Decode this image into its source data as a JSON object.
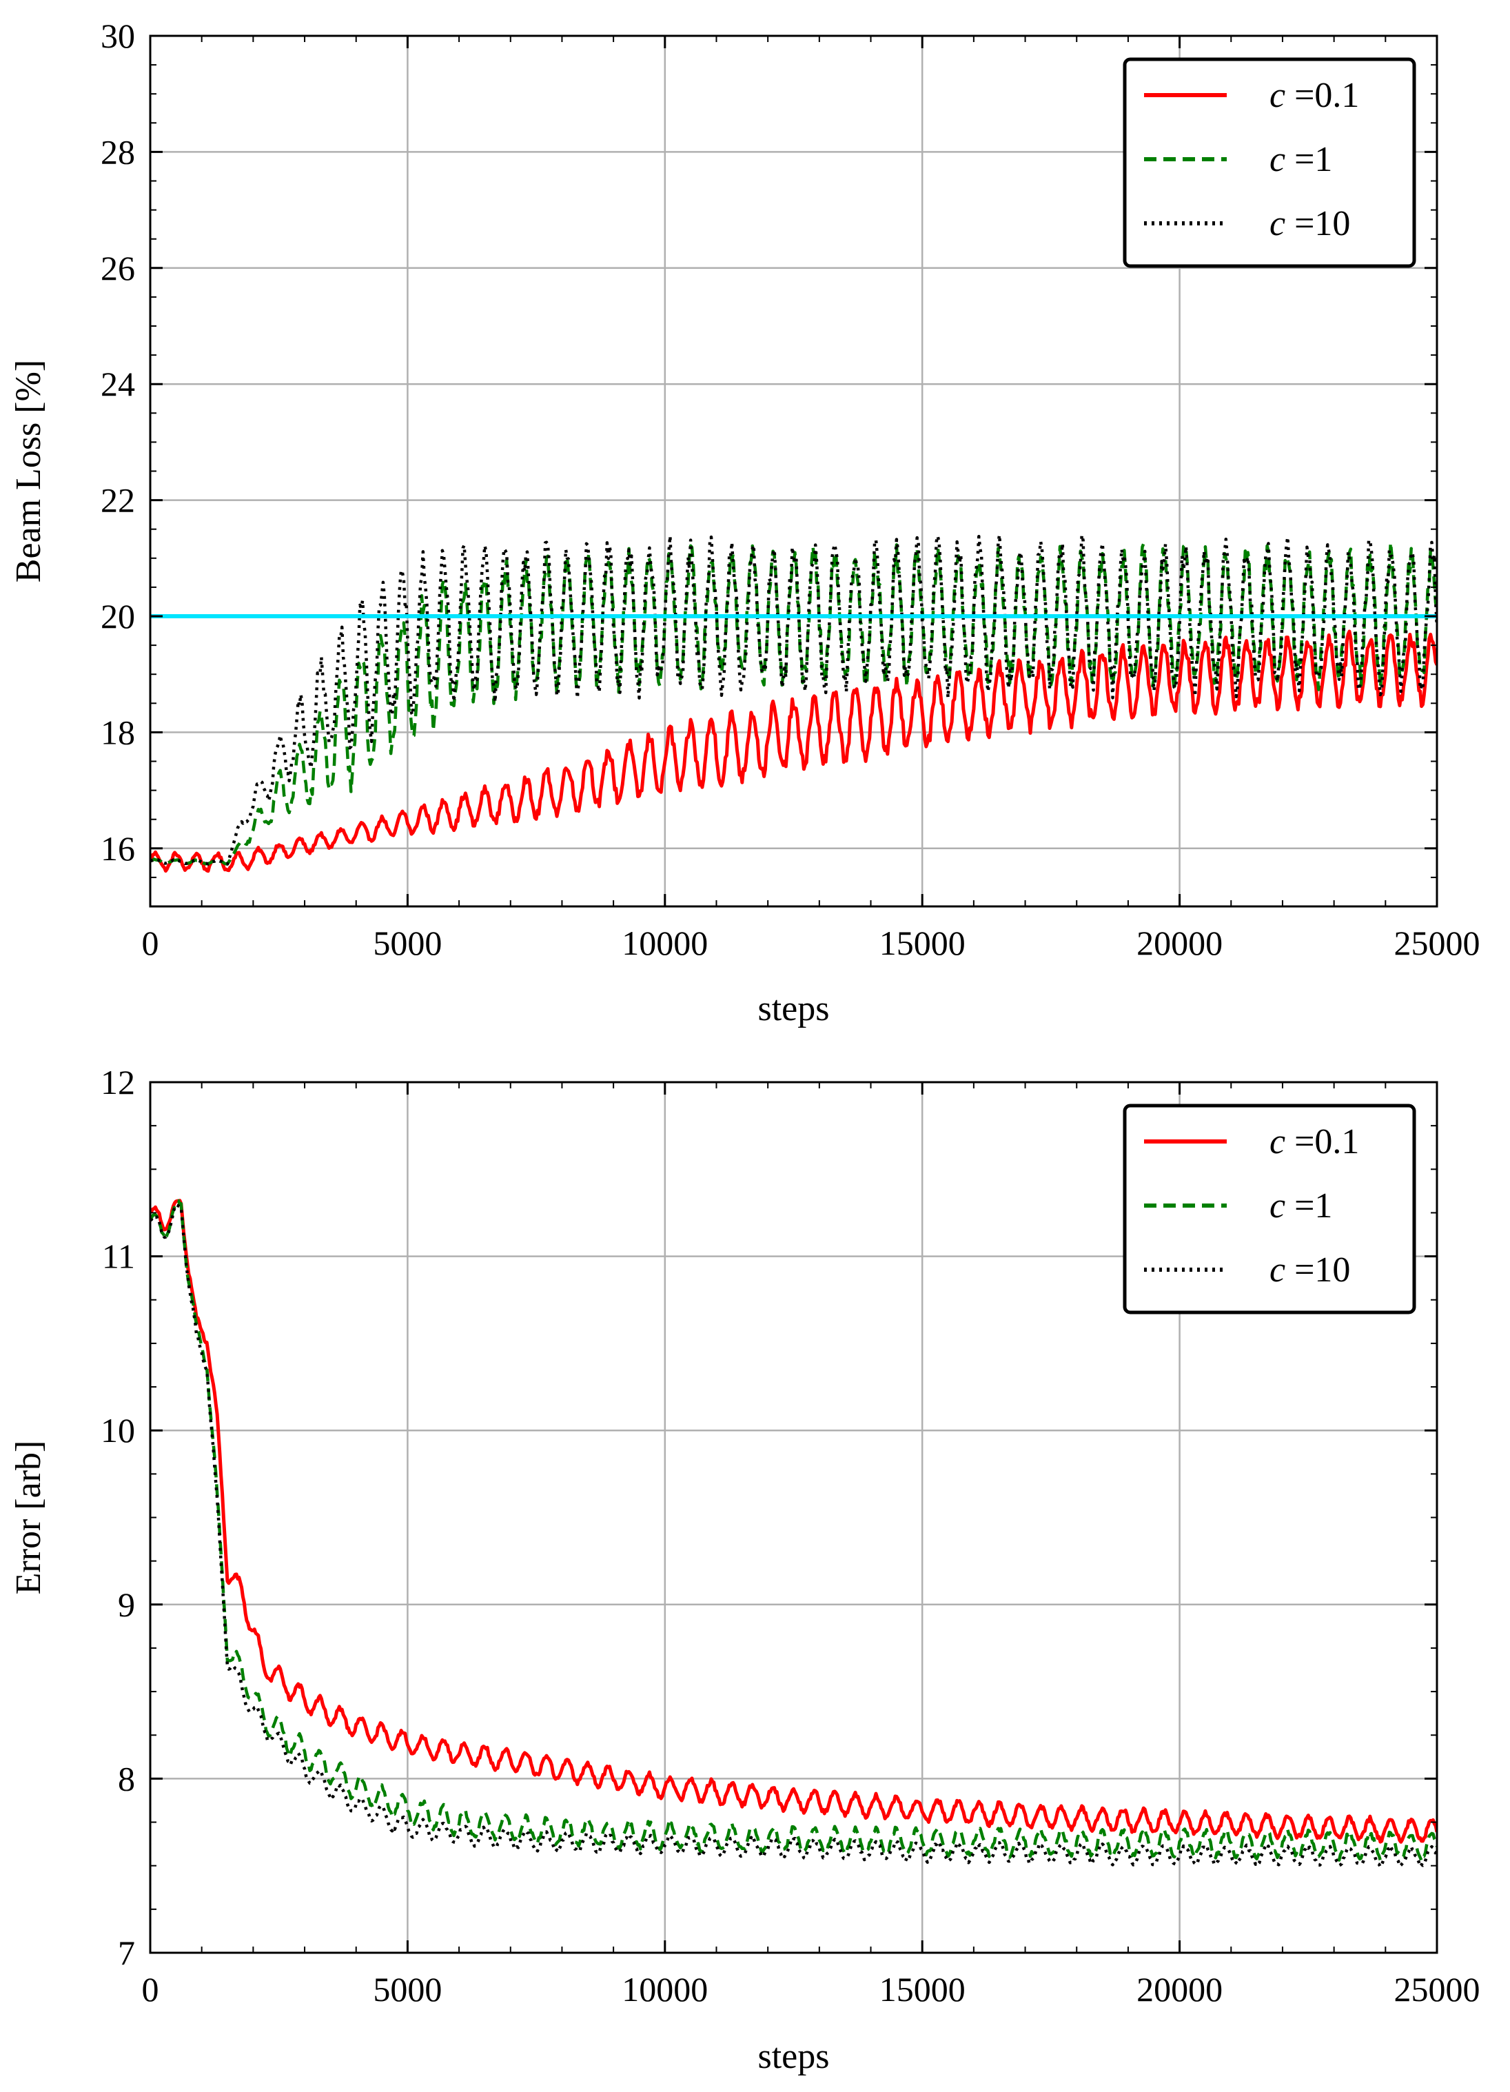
{
  "chart_data": [
    {
      "type": "line",
      "id": "beam-loss",
      "title": "",
      "xlabel": "steps",
      "ylabel": "Beam Loss [%]",
      "xlim": [
        0,
        25000
      ],
      "ylim": [
        15,
        30
      ],
      "xticks": [
        0,
        5000,
        10000,
        15000,
        20000,
        25000
      ],
      "xtick_labels": [
        "0",
        "5000",
        "10000",
        "15000",
        "20000",
        "25000"
      ],
      "yticks": [
        16,
        18,
        20,
        22,
        24,
        26,
        28,
        30
      ],
      "ytick_labels": [
        "16",
        "18",
        "20",
        "22",
        "24",
        "26",
        "28",
        "30"
      ],
      "grid": true,
      "legend_position": "top-right",
      "reference_line": {
        "y": 20,
        "color": "#00e5ff"
      },
      "series": [
        {
          "name": "c =0.1",
          "var": "c",
          "value": "=0.1",
          "style": "solid",
          "color": "#ff0000",
          "x": [
            0,
            1500,
            1800,
            3000,
            5000,
            7500,
            10000,
            12500,
            15000,
            17500,
            20000,
            22500,
            25000
          ],
          "y": [
            15.78,
            15.76,
            15.78,
            16.05,
            16.45,
            16.9,
            17.5,
            17.95,
            18.35,
            18.7,
            18.95,
            19.05,
            19.1
          ],
          "oscillation": 0.55
        },
        {
          "name": "c =1",
          "var": "c",
          "value": "=1",
          "style": "dashed",
          "color": "#007f00",
          "x": [
            0,
            1500,
            1700,
            2500,
            3500,
            4500,
            5500,
            7000,
            8500,
            10000,
            12500,
            15000,
            20000,
            25000
          ],
          "y": [
            15.78,
            15.76,
            16.0,
            16.9,
            17.8,
            18.7,
            19.3,
            19.8,
            19.95,
            20.0,
            20.0,
            20.0,
            20.0,
            20.0
          ],
          "oscillation": 1.05
        },
        {
          "name": "c =10",
          "var": "c",
          "value": "=10",
          "style": "dotted",
          "color": "#000000",
          "x": [
            0,
            1500,
            1700,
            2500,
            3500,
            4500,
            5500,
            7000,
            8500,
            10000,
            12500,
            15000,
            20000,
            25000
          ],
          "y": [
            15.78,
            15.76,
            16.3,
            17.5,
            18.6,
            19.4,
            19.8,
            19.95,
            20.0,
            20.0,
            20.0,
            20.0,
            20.0,
            20.0
          ],
          "oscillation": 1.15
        }
      ]
    },
    {
      "type": "line",
      "id": "error",
      "title": "",
      "xlabel": "steps",
      "ylabel": "Error [arb]",
      "xlim": [
        0,
        25000
      ],
      "ylim": [
        7,
        12
      ],
      "xticks": [
        0,
        5000,
        10000,
        15000,
        20000,
        25000
      ],
      "xtick_labels": [
        "0",
        "5000",
        "10000",
        "15000",
        "20000",
        "25000"
      ],
      "yticks": [
        7,
        8,
        9,
        10,
        11,
        12
      ],
      "ytick_labels": [
        "7",
        "8",
        "9",
        "10",
        "11",
        "12"
      ],
      "grid": true,
      "legend_position": "top-right",
      "series": [
        {
          "name": "c =0.1",
          "var": "c",
          "value": "=0.1",
          "style": "solid",
          "color": "#ff0000",
          "x": [
            0,
            300,
            600,
            700,
            900,
            1100,
            1300,
            1500,
            1800,
            2200,
            3000,
            4000,
            5000,
            6000,
            7500,
            10000,
            12500,
            15000,
            17500,
            20000,
            22500,
            25000
          ],
          "y": [
            11.25,
            11.2,
            11.3,
            11.05,
            10.6,
            10.55,
            10.05,
            9.2,
            9.05,
            8.65,
            8.45,
            8.3,
            8.2,
            8.15,
            8.08,
            7.95,
            7.88,
            7.82,
            7.78,
            7.75,
            7.72,
            7.7
          ],
          "oscillation": 0.06
        },
        {
          "name": "c =1",
          "var": "c",
          "value": "=1",
          "style": "dashed",
          "color": "#007f00",
          "x": [
            0,
            300,
            600,
            700,
            900,
            1100,
            1300,
            1500,
            1800,
            2200,
            3000,
            4000,
            5000,
            6000,
            7500,
            10000,
            12500,
            15000,
            17500,
            20000,
            22500,
            25000
          ],
          "y": [
            11.2,
            11.15,
            11.3,
            11.0,
            10.55,
            10.4,
            9.6,
            8.75,
            8.6,
            8.35,
            8.15,
            7.95,
            7.82,
            7.75,
            7.7,
            7.67,
            7.65,
            7.64,
            7.63,
            7.63,
            7.62,
            7.61
          ],
          "oscillation": 0.07
        },
        {
          "name": "c =10",
          "var": "c",
          "value": "=10",
          "style": "dotted",
          "color": "#000000",
          "x": [
            0,
            300,
            600,
            700,
            900,
            1100,
            1300,
            1500,
            1800,
            2200,
            3000,
            4000,
            5000,
            6000,
            7500,
            10000,
            12500,
            15000,
            17500,
            20000,
            22500,
            25000
          ],
          "y": [
            11.2,
            11.15,
            11.28,
            11.0,
            10.5,
            10.4,
            9.55,
            8.7,
            8.5,
            8.3,
            8.05,
            7.85,
            7.72,
            7.68,
            7.64,
            7.62,
            7.6,
            7.58,
            7.57,
            7.56,
            7.56,
            7.55
          ],
          "oscillation": 0.05
        }
      ]
    }
  ]
}
